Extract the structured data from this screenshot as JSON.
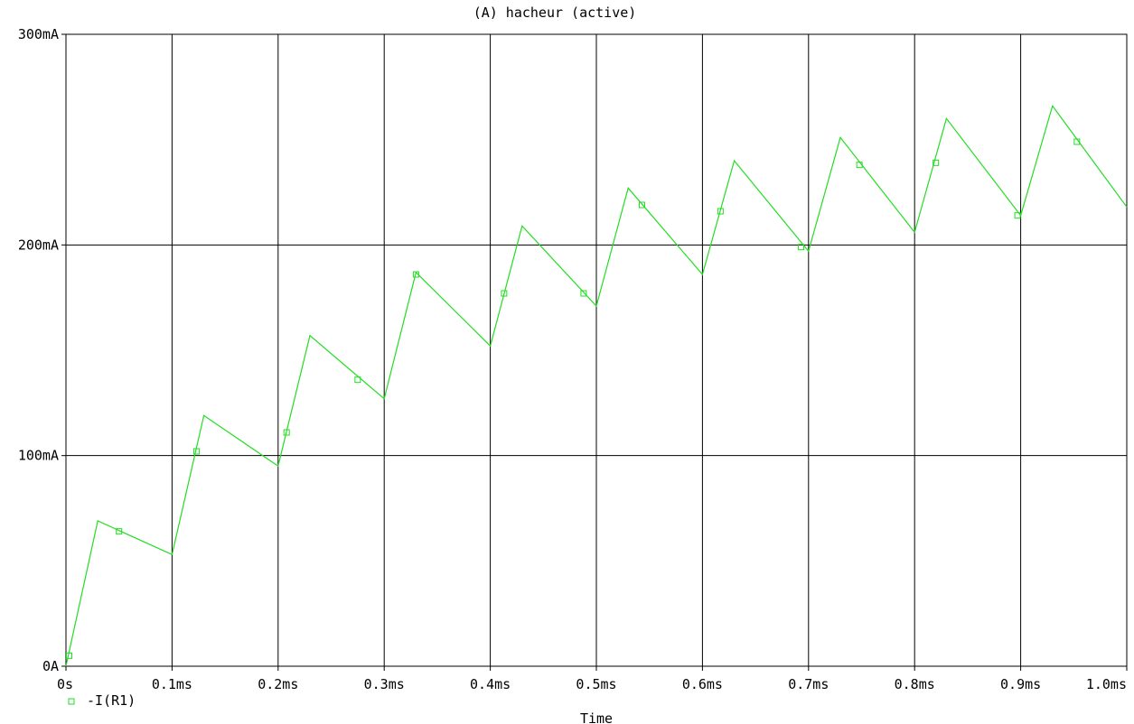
{
  "chart_data": {
    "type": "line",
    "title": "(A) hacheur (active)",
    "xlabel": "Time",
    "ylabel": "",
    "xlim": [
      0,
      1.0
    ],
    "ylim": [
      0,
      300
    ],
    "x_unit": "ms",
    "y_unit": "mA",
    "grid": true,
    "legend_placement": "bottom-left",
    "x_ticks": [
      0,
      0.1,
      0.2,
      0.3,
      0.4,
      0.5,
      0.6,
      0.7,
      0.8,
      0.9,
      1.0
    ],
    "x_tick_labels": [
      "0s",
      "0.1ms",
      "0.2ms",
      "0.3ms",
      "0.4ms",
      "0.5ms",
      "0.6ms",
      "0.7ms",
      "0.8ms",
      "0.9ms",
      "1.0ms"
    ],
    "y_ticks": [
      0,
      100,
      200,
      300
    ],
    "y_tick_labels": [
      "0A",
      "100mA",
      "200mA",
      "300mA"
    ],
    "series": [
      {
        "name": "-I(R1)",
        "color": "#22dd22",
        "marker": "square",
        "x": [
          0,
          0.03,
          0.1,
          0.13,
          0.2,
          0.23,
          0.3,
          0.33,
          0.4,
          0.43,
          0.5,
          0.53,
          0.6,
          0.63,
          0.7,
          0.73,
          0.8,
          0.83,
          0.9,
          0.93,
          1.0
        ],
        "y": [
          0,
          69,
          53,
          119,
          95,
          157,
          127,
          187,
          152,
          209,
          171,
          227,
          186,
          240,
          197,
          251,
          206,
          260,
          214,
          266,
          218
        ],
        "marker_x": [
          0.003,
          0.05,
          0.123,
          0.208,
          0.275,
          0.33,
          0.413,
          0.488,
          0.543,
          0.617,
          0.693,
          0.748,
          0.82,
          0.897,
          0.953
        ],
        "marker_y": [
          5,
          64,
          102,
          111,
          136,
          186,
          177,
          177,
          219,
          216,
          199,
          238,
          239,
          214,
          249
        ]
      }
    ]
  }
}
